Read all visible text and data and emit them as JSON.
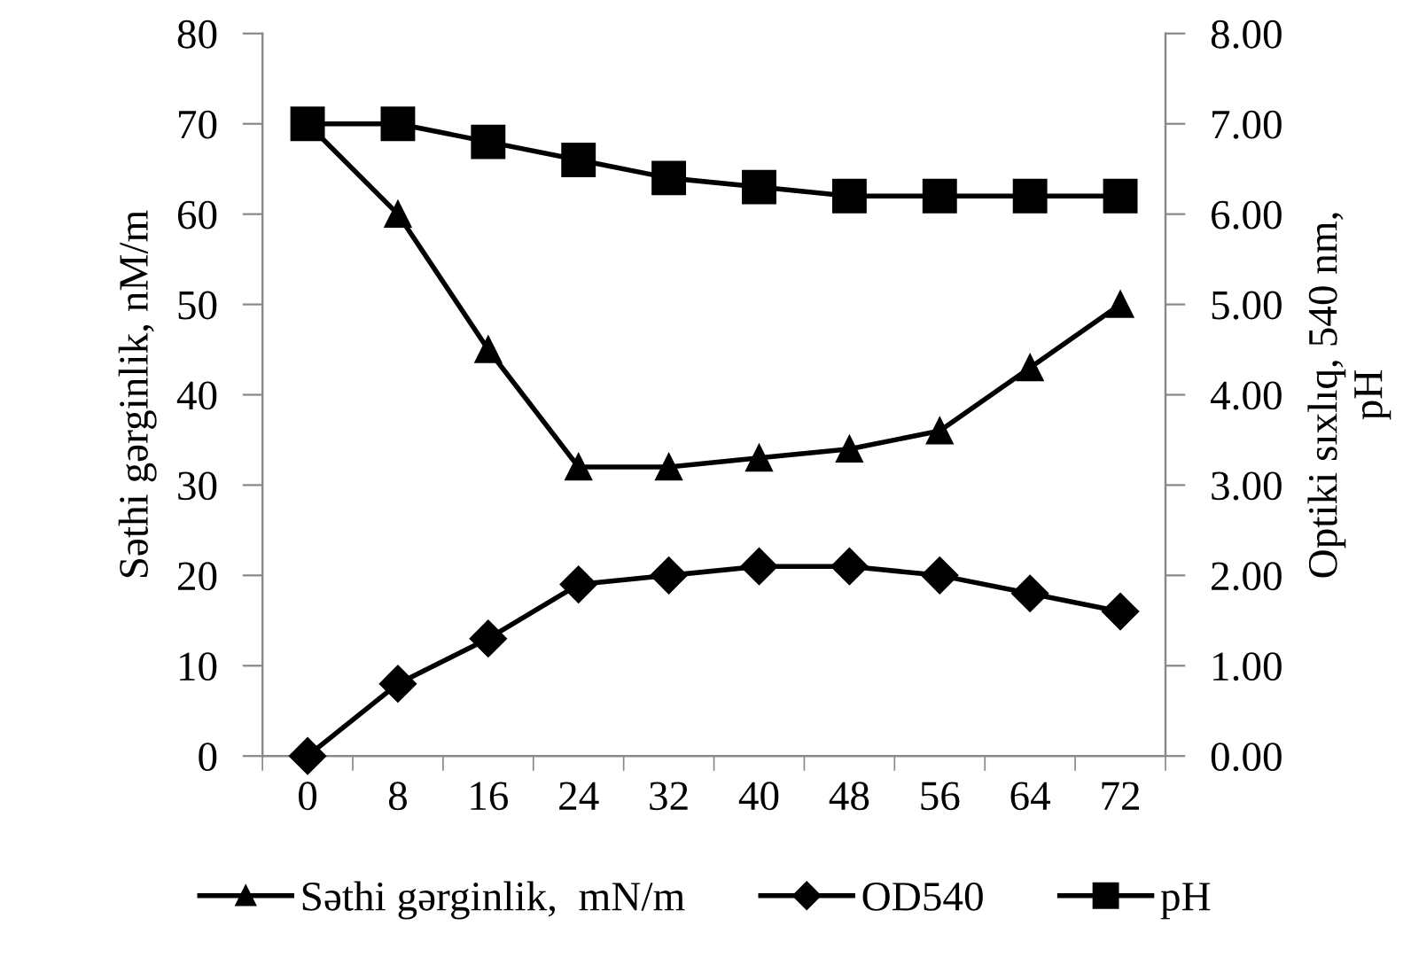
{
  "chart_data": {
    "type": "line",
    "ylabel": "Səthi gərginlik, nM/m",
    "y2label": "Optiki sıxlıq, 540 nm,\npH",
    "categories": [
      "0",
      "8",
      "16",
      "24",
      "32",
      "40",
      "48",
      "56",
      "64",
      "72"
    ],
    "series": [
      {
        "name": "Səthi gərginlik,  mN/m",
        "color": "#000000",
        "marker": "triangle",
        "values": [
          70,
          60,
          45,
          32,
          32,
          33,
          34,
          36,
          43,
          50
        ]
      },
      {
        "name": "OD540",
        "color": "#000000",
        "marker": "diamond",
        "axis": "y2",
        "values": [
          0.0,
          0.8,
          1.3,
          1.9,
          2.0,
          2.1,
          2.1,
          2.0,
          1.8,
          1.6
        ]
      },
      {
        "name": "pH",
        "color": "#000000",
        "marker": "square",
        "axis": "y2",
        "values": [
          7.0,
          7.0,
          6.8,
          6.6,
          6.4,
          6.3,
          6.2,
          6.2,
          6.2,
          6.2
        ]
      }
    ],
    "ylim": [
      0,
      80
    ],
    "yticks": [
      0,
      10,
      20,
      30,
      40,
      50,
      60,
      70,
      80
    ],
    "y2lim": [
      0,
      8
    ],
    "y2ticks": [
      {
        "value": 0,
        "label": "0.00"
      },
      {
        "value": 1,
        "label": "1.00"
      },
      {
        "value": 2,
        "label": "2.00"
      },
      {
        "value": 3,
        "label": "3.00"
      },
      {
        "value": 4,
        "label": "4.00"
      },
      {
        "value": 5,
        "label": "5.00"
      },
      {
        "value": 6,
        "label": "6.00"
      },
      {
        "value": 7,
        "label": "7.00"
      },
      {
        "value": 8,
        "label": "8.00"
      }
    ],
    "grid": false,
    "legend": "bottom",
    "line_style": "solid"
  }
}
